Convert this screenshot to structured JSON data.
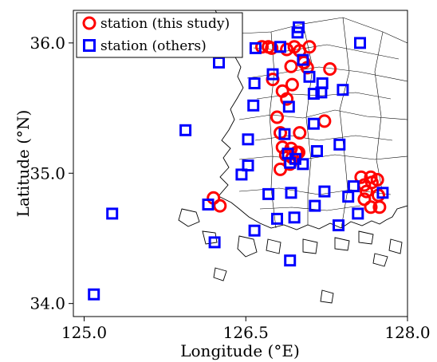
{
  "chart_data": {
    "type": "scatter",
    "xlabel": "Longitude (°E)",
    "ylabel": "Latitude (°N)",
    "xlim": [
      124.9,
      128.0
    ],
    "ylim": [
      33.9,
      36.25
    ],
    "x_ticks": [
      {
        "value": 125.0,
        "label": "125.0"
      },
      {
        "value": 126.5,
        "label": "126.5"
      },
      {
        "value": 128.0,
        "label": "128.0"
      }
    ],
    "y_ticks": [
      {
        "value": 34.0,
        "label": "34.0"
      },
      {
        "value": 35.0,
        "label": "35.0"
      },
      {
        "value": 36.0,
        "label": "36.0"
      }
    ],
    "legend_position": "top-left",
    "series": [
      {
        "name": "station (this study)",
        "marker": "circle",
        "color": "#ff0000",
        "points": [
          [
            126.65,
            35.97
          ],
          [
            126.71,
            35.97
          ],
          [
            126.74,
            35.96
          ],
          [
            126.88,
            35.95
          ],
          [
            126.95,
            35.97
          ],
          [
            127.09,
            35.97
          ],
          [
            127.0,
            35.94
          ],
          [
            127.04,
            35.85
          ],
          [
            127.07,
            35.81
          ],
          [
            126.92,
            35.82
          ],
          [
            126.75,
            35.72
          ],
          [
            126.93,
            35.68
          ],
          [
            126.88,
            35.57
          ],
          [
            126.84,
            35.63
          ],
          [
            127.28,
            35.8
          ],
          [
            126.79,
            35.43
          ],
          [
            127.23,
            35.4
          ],
          [
            126.82,
            35.31
          ],
          [
            127.0,
            35.31
          ],
          [
            126.84,
            35.2
          ],
          [
            126.92,
            35.19
          ],
          [
            126.97,
            35.16
          ],
          [
            126.99,
            35.16
          ],
          [
            126.87,
            35.14
          ],
          [
            126.93,
            35.12
          ],
          [
            126.91,
            35.07
          ],
          [
            126.82,
            35.03
          ],
          [
            127.57,
            34.97
          ],
          [
            127.66,
            34.97
          ],
          [
            127.72,
            34.95
          ],
          [
            127.67,
            34.93
          ],
          [
            127.6,
            34.91
          ],
          [
            127.62,
            34.86
          ],
          [
            127.73,
            34.83
          ],
          [
            127.6,
            34.8
          ],
          [
            127.66,
            34.74
          ],
          [
            127.74,
            34.74
          ],
          [
            126.2,
            34.81
          ],
          [
            126.26,
            34.75
          ]
        ]
      },
      {
        "name": "station (others)",
        "marker": "square",
        "color": "#0000ff",
        "points": [
          [
            126.99,
            36.12
          ],
          [
            126.98,
            36.08
          ],
          [
            127.56,
            36.0
          ],
          [
            126.59,
            35.96
          ],
          [
            126.82,
            35.97
          ],
          [
            126.25,
            35.85
          ],
          [
            127.03,
            35.87
          ],
          [
            126.75,
            35.76
          ],
          [
            126.58,
            35.69
          ],
          [
            127.09,
            35.74
          ],
          [
            127.21,
            35.69
          ],
          [
            127.2,
            35.62
          ],
          [
            127.13,
            35.61
          ],
          [
            127.4,
            35.64
          ],
          [
            126.57,
            35.52
          ],
          [
            126.9,
            35.51
          ],
          [
            126.52,
            35.26
          ],
          [
            127.13,
            35.38
          ],
          [
            126.86,
            35.3
          ],
          [
            127.37,
            35.22
          ],
          [
            127.16,
            35.17
          ],
          [
            126.89,
            35.15
          ],
          [
            126.96,
            35.11
          ],
          [
            126.91,
            35.08
          ],
          [
            127.03,
            35.07
          ],
          [
            126.52,
            35.06
          ],
          [
            126.46,
            34.99
          ],
          [
            125.94,
            35.33
          ],
          [
            126.15,
            34.76
          ],
          [
            126.71,
            34.84
          ],
          [
            126.92,
            34.85
          ],
          [
            127.23,
            34.86
          ],
          [
            127.5,
            34.9
          ],
          [
            127.77,
            34.85
          ],
          [
            127.45,
            34.82
          ],
          [
            127.14,
            34.75
          ],
          [
            127.54,
            34.69
          ],
          [
            126.95,
            34.66
          ],
          [
            126.79,
            34.65
          ],
          [
            127.36,
            34.6
          ],
          [
            126.58,
            34.56
          ],
          [
            126.21,
            34.47
          ],
          [
            126.91,
            34.33
          ],
          [
            125.26,
            34.69
          ],
          [
            125.09,
            34.07
          ]
        ]
      }
    ]
  }
}
